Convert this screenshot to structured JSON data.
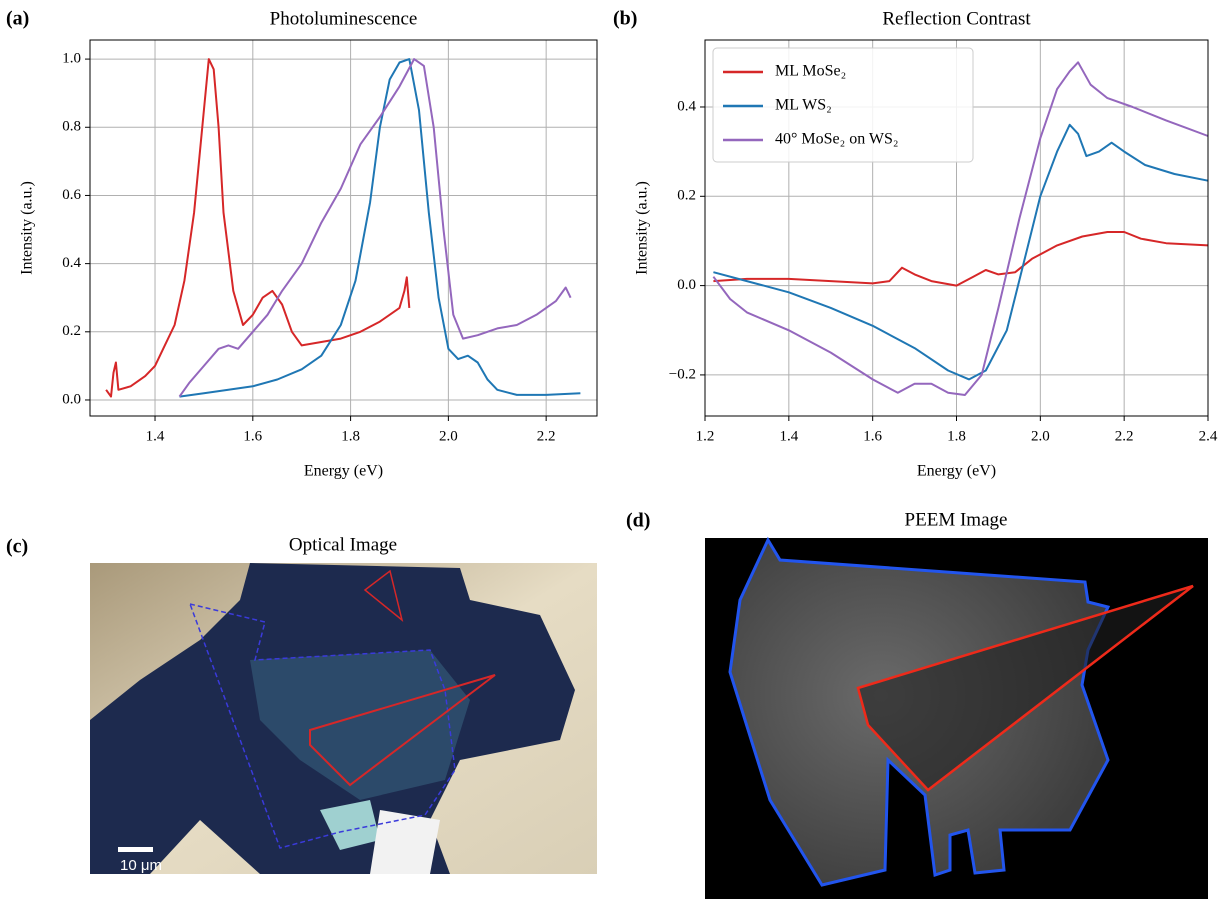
{
  "chart_data": [
    {
      "type": "line",
      "panel_label": "(a)",
      "title": "Photoluminescence",
      "xlabel": "Energy (eV)",
      "ylabel": "Intensity (a.u.)",
      "xlim": [
        1.267,
        2.304
      ],
      "ylim": [
        -0.047,
        1.056
      ],
      "xticks": [
        1.4,
        1.6,
        1.8,
        {
          "value": 2,
          "label": "2.0"
        },
        2.2
      ],
      "yticks": [
        {
          "value": 0,
          "label": "0.0"
        },
        0.2,
        0.4,
        0.6,
        0.8,
        {
          "value": 1,
          "label": "1.0"
        }
      ],
      "grid": true,
      "series": [
        {
          "color": "#d62728",
          "x": [
            1.3,
            1.31,
            1.315,
            1.32,
            1.325,
            1.35,
            1.38,
            1.4,
            1.42,
            1.44,
            1.46,
            1.48,
            1.5,
            1.51,
            1.52,
            1.53,
            1.54,
            1.56,
            1.58,
            1.6,
            1.62,
            1.64,
            1.66,
            1.68,
            1.7,
            1.74,
            1.78,
            1.82,
            1.86,
            1.9,
            1.91,
            1.915,
            1.92
          ],
          "values": [
            0.03,
            0.01,
            0.08,
            0.11,
            0.03,
            0.04,
            0.07,
            0.1,
            0.16,
            0.22,
            0.35,
            0.55,
            0.85,
            1.0,
            0.97,
            0.8,
            0.55,
            0.32,
            0.22,
            0.25,
            0.3,
            0.32,
            0.28,
            0.2,
            0.16,
            0.17,
            0.18,
            0.2,
            0.23,
            0.27,
            0.32,
            0.36,
            0.27
          ]
        },
        {
          "color": "#1f77b4",
          "x": [
            1.45,
            1.5,
            1.55,
            1.6,
            1.65,
            1.7,
            1.74,
            1.78,
            1.81,
            1.84,
            1.86,
            1.88,
            1.9,
            1.92,
            1.94,
            1.96,
            1.98,
            2.0,
            2.02,
            2.04,
            2.06,
            2.08,
            2.1,
            2.14,
            2.2,
            2.27
          ],
          "values": [
            0.01,
            0.02,
            0.03,
            0.04,
            0.06,
            0.09,
            0.13,
            0.22,
            0.35,
            0.58,
            0.8,
            0.94,
            0.99,
            1.0,
            0.85,
            0.55,
            0.3,
            0.15,
            0.12,
            0.13,
            0.11,
            0.06,
            0.03,
            0.015,
            0.015,
            0.02
          ]
        },
        {
          "color": "#9467bd",
          "x": [
            1.45,
            1.47,
            1.5,
            1.53,
            1.55,
            1.57,
            1.6,
            1.63,
            1.66,
            1.7,
            1.74,
            1.78,
            1.82,
            1.86,
            1.9,
            1.93,
            1.95,
            1.97,
            1.99,
            2.01,
            2.03,
            2.06,
            2.1,
            2.14,
            2.18,
            2.22,
            2.24,
            2.25
          ],
          "values": [
            0.01,
            0.05,
            0.1,
            0.15,
            0.16,
            0.15,
            0.2,
            0.25,
            0.32,
            0.4,
            0.52,
            0.62,
            0.75,
            0.83,
            0.92,
            1.0,
            0.98,
            0.8,
            0.5,
            0.25,
            0.18,
            0.19,
            0.21,
            0.22,
            0.25,
            0.29,
            0.33,
            0.3
          ]
        }
      ]
    },
    {
      "type": "line",
      "panel_label": "(b)",
      "title": "Reflection Contrast",
      "xlabel": "Energy (eV)",
      "ylabel": "Intensity (a.u.)",
      "xlim": [
        1.2,
        2.4
      ],
      "ylim": [
        -0.292,
        0.55
      ],
      "xticks": [
        1.2,
        1.4,
        1.6,
        1.8,
        {
          "value": 2,
          "label": "2.0"
        },
        2.2,
        2.4
      ],
      "yticks": [
        {
          "value": -0.2,
          "label": "−0.2"
        },
        {
          "value": 0,
          "label": "0.0"
        },
        0.2,
        0.4
      ],
      "grid": true,
      "legend": "upper left",
      "series": [
        {
          "name": "ML MoSe₂",
          "color": "#d62728",
          "x": [
            1.22,
            1.3,
            1.4,
            1.5,
            1.6,
            1.64,
            1.67,
            1.7,
            1.74,
            1.8,
            1.84,
            1.87,
            1.9,
            1.94,
            1.98,
            2.04,
            2.1,
            2.16,
            2.2,
            2.24,
            2.3,
            2.4
          ],
          "values": [
            0.01,
            0.015,
            0.015,
            0.01,
            0.005,
            0.01,
            0.04,
            0.025,
            0.01,
            0.0,
            0.02,
            0.035,
            0.025,
            0.03,
            0.06,
            0.09,
            0.11,
            0.12,
            0.12,
            0.105,
            0.095,
            0.09
          ]
        },
        {
          "name": "ML WS₂",
          "color": "#1f77b4",
          "x": [
            1.22,
            1.3,
            1.4,
            1.5,
            1.6,
            1.7,
            1.78,
            1.83,
            1.87,
            1.92,
            1.96,
            2.0,
            2.04,
            2.07,
            2.09,
            2.11,
            2.14,
            2.17,
            2.2,
            2.25,
            2.32,
            2.4
          ],
          "values": [
            0.03,
            0.01,
            -0.015,
            -0.05,
            -0.09,
            -0.14,
            -0.19,
            -0.21,
            -0.19,
            -0.1,
            0.05,
            0.2,
            0.3,
            0.36,
            0.34,
            0.29,
            0.3,
            0.32,
            0.3,
            0.27,
            0.25,
            0.235
          ]
        },
        {
          "name": "40° MoSe₂ on WS₂",
          "color": "#9467bd",
          "x": [
            1.22,
            1.26,
            1.3,
            1.4,
            1.5,
            1.6,
            1.66,
            1.7,
            1.74,
            1.78,
            1.82,
            1.86,
            1.9,
            1.95,
            2.0,
            2.04,
            2.07,
            2.09,
            2.12,
            2.16,
            2.22,
            2.3,
            2.4
          ],
          "values": [
            0.02,
            -0.03,
            -0.06,
            -0.1,
            -0.15,
            -0.21,
            -0.24,
            -0.22,
            -0.22,
            -0.24,
            -0.245,
            -0.2,
            -0.05,
            0.15,
            0.33,
            0.44,
            0.48,
            0.5,
            0.45,
            0.42,
            0.4,
            0.37,
            0.335
          ]
        }
      ]
    }
  ],
  "images": [
    {
      "panel_label": "(c)",
      "title": "Optical Image",
      "scale_bar": "10 μm"
    },
    {
      "panel_label": "(d)",
      "title": "PEEM Image"
    }
  ]
}
